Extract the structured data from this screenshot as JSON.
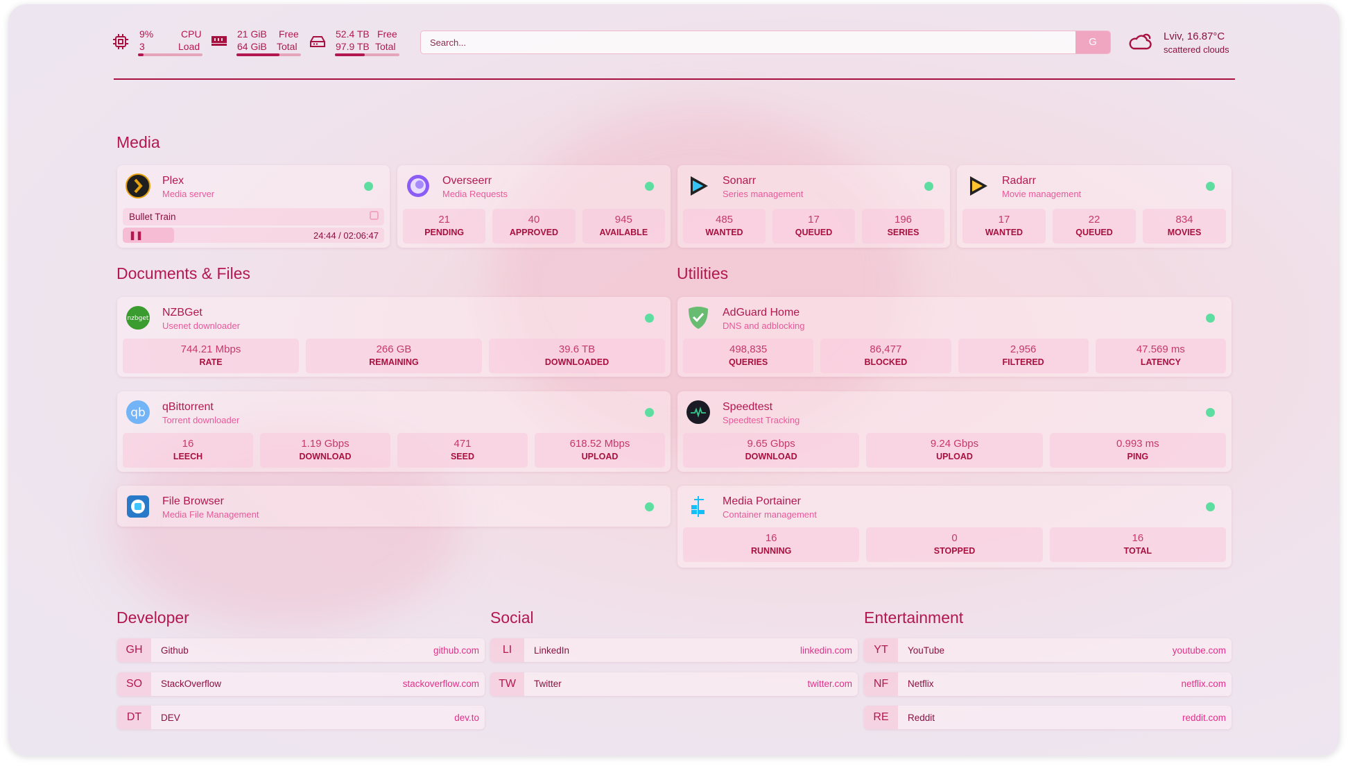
{
  "header": {
    "cpu": {
      "value": "9%",
      "cores": "3",
      "label1": "CPU",
      "label2": "Load",
      "fill": 0.09,
      "icon": "cpu-icon"
    },
    "memory": {
      "free": "21 GiB",
      "total": "64 GiB",
      "label1": "Free",
      "label2": "Total",
      "fill": 0.67,
      "icon": "memory-icon"
    },
    "disk": {
      "free": "52.4 TB",
      "total": "97.9 TB",
      "label1": "Free",
      "label2": "Total",
      "fill": 0.46,
      "icon": "disk-icon"
    },
    "search": {
      "placeholder": "Search...",
      "button": "G"
    },
    "weather": {
      "location_temp": "Lviv, 16.87°C",
      "condition": "scattered clouds",
      "icon": "cloud-icon"
    }
  },
  "colors": {
    "accent": "#b3174f",
    "status_online": "#5ddea0",
    "link": "#e0308a"
  },
  "sections": {
    "media": "Media",
    "documents": "Documents & Files",
    "utilities": "Utilities",
    "developer": "Developer",
    "social": "Social",
    "entertainment": "Entertainment"
  },
  "services": [
    {
      "name": "Plex",
      "desc": "Media server",
      "icon": "plex-icon",
      "now_playing": {
        "title": "Bullet Train",
        "time": "24:44 / 02:06:47",
        "state": "paused",
        "progress": 0.195
      }
    },
    {
      "name": "Overseerr",
      "desc": "Media Requests",
      "icon": "overseerr-icon",
      "stats": [
        {
          "value": "21",
          "label": "PENDING"
        },
        {
          "value": "40",
          "label": "APPROVED"
        },
        {
          "value": "945",
          "label": "AVAILABLE"
        }
      ]
    },
    {
      "name": "Sonarr",
      "desc": "Series management",
      "icon": "sonarr-icon",
      "stats": [
        {
          "value": "485",
          "label": "WANTED"
        },
        {
          "value": "17",
          "label": "QUEUED"
        },
        {
          "value": "196",
          "label": "SERIES"
        }
      ]
    },
    {
      "name": "Radarr",
      "desc": "Movie management",
      "icon": "radarr-icon",
      "stats": [
        {
          "value": "17",
          "label": "WANTED"
        },
        {
          "value": "22",
          "label": "QUEUED"
        },
        {
          "value": "834",
          "label": "MOVIES"
        }
      ]
    },
    {
      "name": "NZBGet",
      "desc": "Usenet downloader",
      "icon": "nzbget-icon",
      "icon_text": "nzbget",
      "stats": [
        {
          "value": "744.21 Mbps",
          "label": "RATE"
        },
        {
          "value": "266 GB",
          "label": "REMAINING"
        },
        {
          "value": "39.6 TB",
          "label": "DOWNLOADED"
        }
      ]
    },
    {
      "name": "qBittorrent",
      "desc": "Torrent downloader",
      "icon": "qbittorrent-icon",
      "icon_text": "qb",
      "stats": [
        {
          "value": "16",
          "label": "LEECH"
        },
        {
          "value": "1.19 Gbps",
          "label": "DOWNLOAD"
        },
        {
          "value": "471",
          "label": "SEED"
        },
        {
          "value": "618.52 Mbps",
          "label": "UPLOAD"
        }
      ]
    },
    {
      "name": "File Browser",
      "desc": "Media File Management",
      "icon": "filebrowser-icon"
    },
    {
      "name": "AdGuard Home",
      "desc": "DNS and adblocking",
      "icon": "adguard-icon",
      "stats": [
        {
          "value": "498,835",
          "label": "QUERIES"
        },
        {
          "value": "86,477",
          "label": "BLOCKED"
        },
        {
          "value": "2,956",
          "label": "FILTERED"
        },
        {
          "value": "47.569 ms",
          "label": "LATENCY"
        }
      ]
    },
    {
      "name": "Speedtest",
      "desc": "Speedtest Tracking",
      "icon": "speedtest-icon",
      "stats": [
        {
          "value": "9.65 Gbps",
          "label": "DOWNLOAD"
        },
        {
          "value": "9.24 Gbps",
          "label": "UPLOAD"
        },
        {
          "value": "0.993 ms",
          "label": "PING"
        }
      ]
    },
    {
      "name": "Media Portainer",
      "desc": "Container management",
      "icon": "portainer-icon",
      "stats": [
        {
          "value": "16",
          "label": "RUNNING"
        },
        {
          "value": "0",
          "label": "STOPPED"
        },
        {
          "value": "16",
          "label": "TOTAL"
        }
      ]
    }
  ],
  "bookmarks": {
    "developer": [
      {
        "abbr": "GH",
        "name": "Github",
        "url": "github.com"
      },
      {
        "abbr": "SO",
        "name": "StackOverflow",
        "url": "stackoverflow.com"
      },
      {
        "abbr": "DT",
        "name": "DEV",
        "url": "dev.to"
      }
    ],
    "social": [
      {
        "abbr": "LI",
        "name": "LinkedIn",
        "url": "linkedin.com"
      },
      {
        "abbr": "TW",
        "name": "Twitter",
        "url": "twitter.com"
      }
    ],
    "entertainment": [
      {
        "abbr": "YT",
        "name": "YouTube",
        "url": "youtube.com"
      },
      {
        "abbr": "NF",
        "name": "Netflix",
        "url": "netflix.com"
      },
      {
        "abbr": "RE",
        "name": "Reddit",
        "url": "reddit.com"
      }
    ]
  }
}
